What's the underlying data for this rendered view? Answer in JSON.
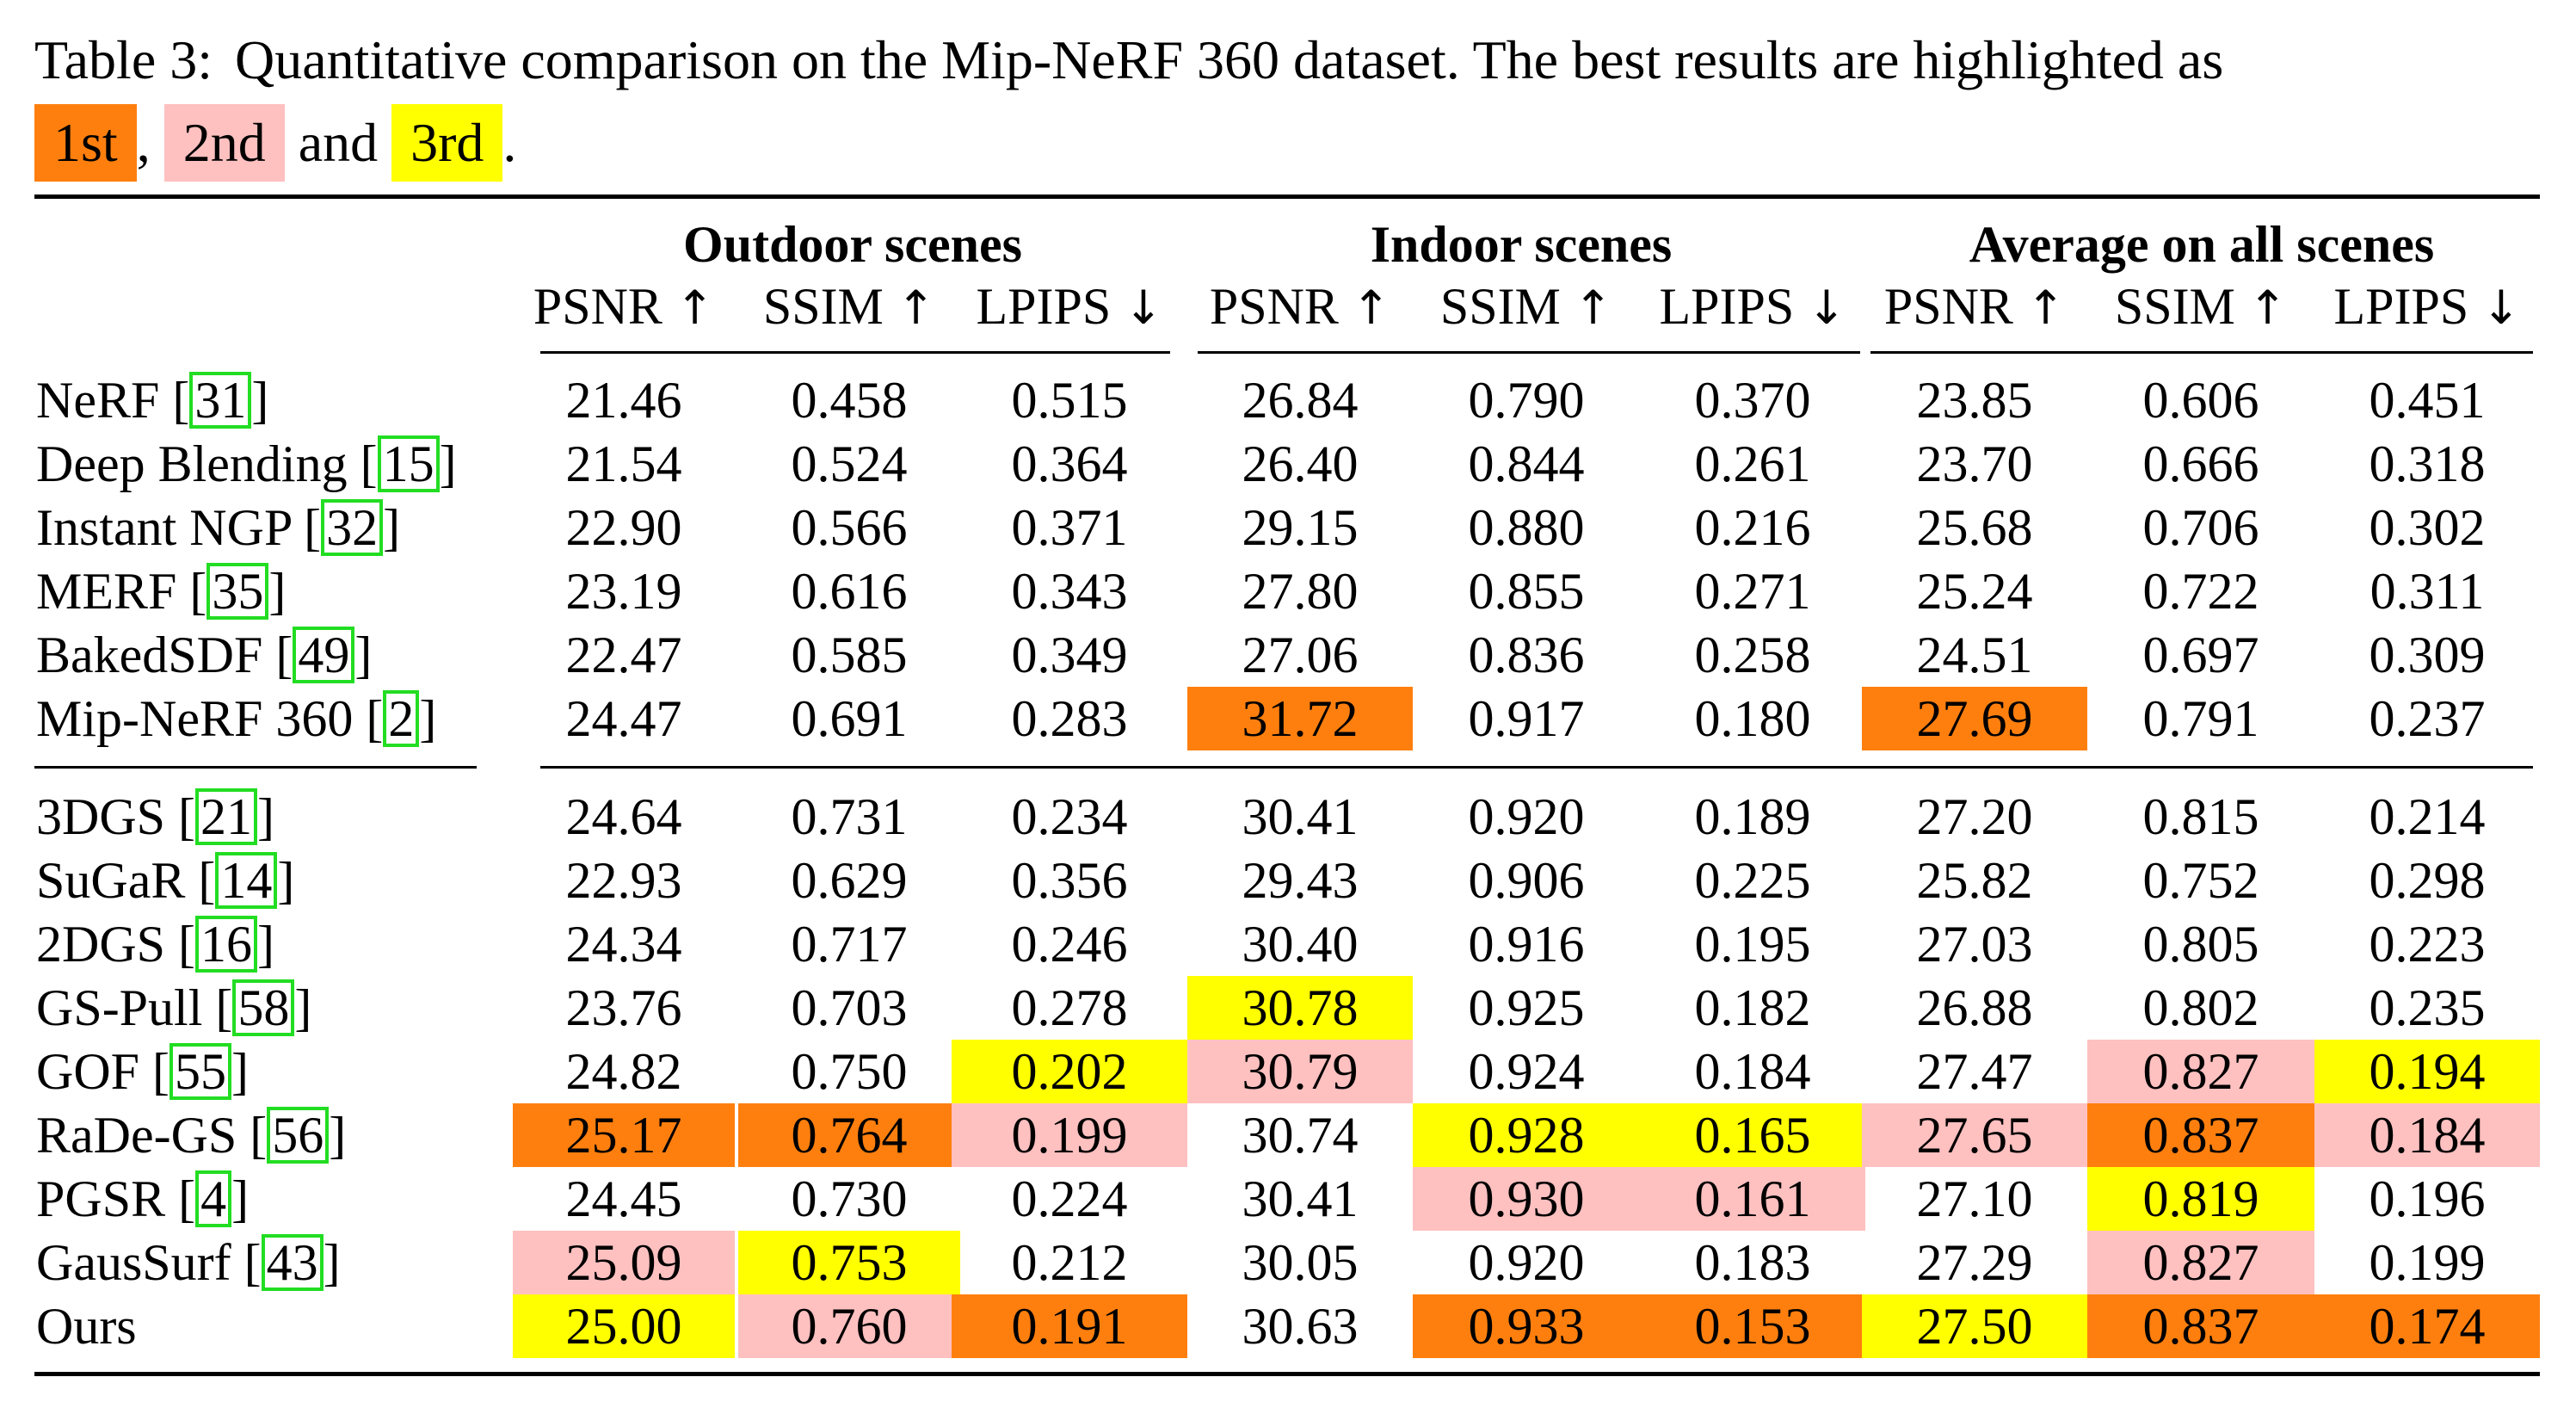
{
  "caption": {
    "label": "Table 3:",
    "text": "Quantitative comparison on the Mip-NeRF 360 dataset. The best results are highlighted as",
    "first": "1st",
    "sep1": ",",
    "second": "2nd",
    "and": "and",
    "third": "3rd",
    "end": "."
  },
  "colors": {
    "first": "#ff7f0e",
    "second": "#ffc0c0",
    "third": "#ffff00",
    "ref_box": "#22dd22"
  },
  "groups": [
    "Outdoor scenes",
    "Indoor scenes",
    "Average on all scenes"
  ],
  "metrics": [
    {
      "name": "PSNR",
      "arrow": "↑"
    },
    {
      "name": "SSIM",
      "arrow": "↑"
    },
    {
      "name": "LPIPS",
      "arrow": "↓"
    },
    {
      "name": "PSNR",
      "arrow": "↑"
    },
    {
      "name": "SSIM",
      "arrow": "↑"
    },
    {
      "name": "LPIPS",
      "arrow": "↓"
    },
    {
      "name": "PSNR",
      "arrow": "↑"
    },
    {
      "name": "SSIM",
      "arrow": "↑"
    },
    {
      "name": "LPIPS",
      "arrow": "↓"
    }
  ],
  "rows": [
    {
      "method": "NeRF",
      "ref": "31",
      "values": [
        "21.46",
        "0.458",
        "0.515",
        "26.84",
        "0.790",
        "0.370",
        "23.85",
        "0.606",
        "0.451"
      ],
      "ranks": [
        0,
        0,
        0,
        0,
        0,
        0,
        0,
        0,
        0
      ]
    },
    {
      "method": "Deep Blending",
      "ref": "15",
      "values": [
        "21.54",
        "0.524",
        "0.364",
        "26.40",
        "0.844",
        "0.261",
        "23.70",
        "0.666",
        "0.318"
      ],
      "ranks": [
        0,
        0,
        0,
        0,
        0,
        0,
        0,
        0,
        0
      ]
    },
    {
      "method": "Instant NGP",
      "ref": "32",
      "values": [
        "22.90",
        "0.566",
        "0.371",
        "29.15",
        "0.880",
        "0.216",
        "25.68",
        "0.706",
        "0.302"
      ],
      "ranks": [
        0,
        0,
        0,
        0,
        0,
        0,
        0,
        0,
        0
      ]
    },
    {
      "method": "MERF",
      "ref": "35",
      "values": [
        "23.19",
        "0.616",
        "0.343",
        "27.80",
        "0.855",
        "0.271",
        "25.24",
        "0.722",
        "0.311"
      ],
      "ranks": [
        0,
        0,
        0,
        0,
        0,
        0,
        0,
        0,
        0
      ]
    },
    {
      "method": "BakedSDF",
      "ref": "49",
      "values": [
        "22.47",
        "0.585",
        "0.349",
        "27.06",
        "0.836",
        "0.258",
        "24.51",
        "0.697",
        "0.309"
      ],
      "ranks": [
        0,
        0,
        0,
        0,
        0,
        0,
        0,
        0,
        0
      ]
    },
    {
      "method": "Mip-NeRF 360",
      "ref": "2",
      "values": [
        "24.47",
        "0.691",
        "0.283",
        "31.72",
        "0.917",
        "0.180",
        "27.69",
        "0.791",
        "0.237"
      ],
      "ranks": [
        0,
        0,
        0,
        1,
        0,
        0,
        1,
        0,
        0
      ]
    },
    {
      "method": "3DGS",
      "ref": "21",
      "values": [
        "24.64",
        "0.731",
        "0.234",
        "30.41",
        "0.920",
        "0.189",
        "27.20",
        "0.815",
        "0.214"
      ],
      "ranks": [
        0,
        0,
        0,
        0,
        0,
        0,
        0,
        0,
        0
      ]
    },
    {
      "method": "SuGaR",
      "ref": "14",
      "values": [
        "22.93",
        "0.629",
        "0.356",
        "29.43",
        "0.906",
        "0.225",
        "25.82",
        "0.752",
        "0.298"
      ],
      "ranks": [
        0,
        0,
        0,
        0,
        0,
        0,
        0,
        0,
        0
      ]
    },
    {
      "method": "2DGS",
      "ref": "16",
      "values": [
        "24.34",
        "0.717",
        "0.246",
        "30.40",
        "0.916",
        "0.195",
        "27.03",
        "0.805",
        "0.223"
      ],
      "ranks": [
        0,
        0,
        0,
        0,
        0,
        0,
        0,
        0,
        0
      ]
    },
    {
      "method": "GS-Pull",
      "ref": "58",
      "values": [
        "23.76",
        "0.703",
        "0.278",
        "30.78",
        "0.925",
        "0.182",
        "26.88",
        "0.802",
        "0.235"
      ],
      "ranks": [
        0,
        0,
        0,
        3,
        0,
        0,
        0,
        0,
        0
      ]
    },
    {
      "method": "GOF",
      "ref": "55",
      "values": [
        "24.82",
        "0.750",
        "0.202",
        "30.79",
        "0.924",
        "0.184",
        "27.47",
        "0.827",
        "0.194"
      ],
      "ranks": [
        0,
        0,
        3,
        2,
        0,
        0,
        0,
        2,
        3
      ]
    },
    {
      "method": "RaDe-GS",
      "ref": "56",
      "values": [
        "25.17",
        "0.764",
        "0.199",
        "30.74",
        "0.928",
        "0.165",
        "27.65",
        "0.837",
        "0.184"
      ],
      "ranks": [
        1,
        1,
        2,
        0,
        3,
        3,
        2,
        1,
        2
      ]
    },
    {
      "method": "PGSR",
      "ref": "4",
      "values": [
        "24.45",
        "0.730",
        "0.224",
        "30.41",
        "0.930",
        "0.161",
        "27.10",
        "0.819",
        "0.196"
      ],
      "ranks": [
        0,
        0,
        0,
        0,
        2,
        2,
        0,
        3,
        0
      ]
    },
    {
      "method": "GausSurf",
      "ref": "43",
      "values": [
        "25.09",
        "0.753",
        "0.212",
        "30.05",
        "0.920",
        "0.183",
        "27.29",
        "0.827",
        "0.199"
      ],
      "ranks": [
        2,
        3,
        0,
        0,
        0,
        0,
        0,
        2,
        0
      ]
    },
    {
      "method": "Ours",
      "ref": "",
      "values": [
        "25.00",
        "0.760",
        "0.191",
        "30.63",
        "0.933",
        "0.153",
        "27.50",
        "0.837",
        "0.174"
      ],
      "ranks": [
        3,
        2,
        1,
        0,
        1,
        1,
        3,
        1,
        1
      ]
    }
  ]
}
